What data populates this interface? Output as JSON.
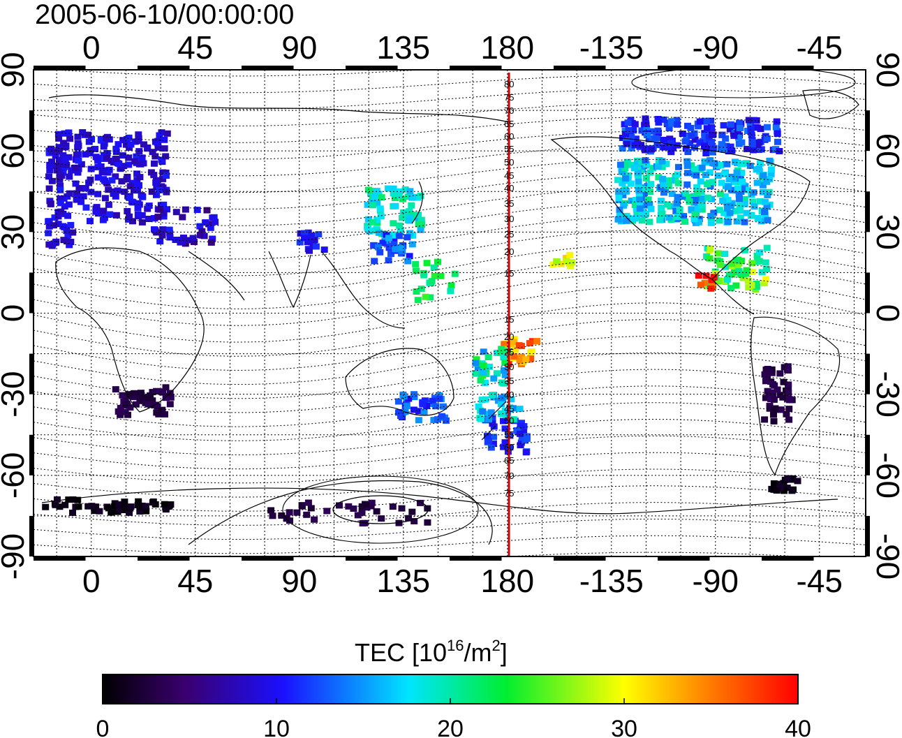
{
  "title": "2005-06-10/00:00:00",
  "colorbar": {
    "label_prefix": "TEC  [10",
    "label_exp": "16",
    "label_mid": "/m",
    "label_exp2": "2",
    "label_suffix": "]",
    "min": 0,
    "max": 40,
    "ticks": [
      "0",
      "10",
      "20",
      "30",
      "40"
    ],
    "stops": [
      "#000000",
      "#3a0070",
      "#1a10ff",
      "#00e5ff",
      "#00ee30",
      "#ffff00",
      "#ff8000",
      "#ff0000"
    ]
  },
  "axes": {
    "lon_ticks": [
      "0",
      "45",
      "90",
      "135",
      "180",
      "-135",
      "-90",
      "-45"
    ],
    "lat_ticks_left": [
      "90",
      "60",
      "30",
      "0",
      "-30",
      "-60",
      "-90"
    ],
    "lat_ticks_right": [
      "90",
      "60",
      "30",
      "0",
      "-30",
      "-60",
      "-90"
    ]
  },
  "maglat_labels": [
    "80",
    "75",
    "70",
    "65",
    "60",
    "55",
    "50",
    "45",
    "40",
    "35",
    "30",
    "25",
    "20",
    "15",
    "15",
    "20",
    "25",
    "30",
    "35",
    "40",
    "45",
    "50",
    "55",
    "60",
    "65",
    "70",
    "75"
  ],
  "map": {
    "dateline_color": "#cc0000",
    "lon_range": [
      -25,
      335
    ],
    "lat_range": [
      -90,
      90
    ]
  }
}
